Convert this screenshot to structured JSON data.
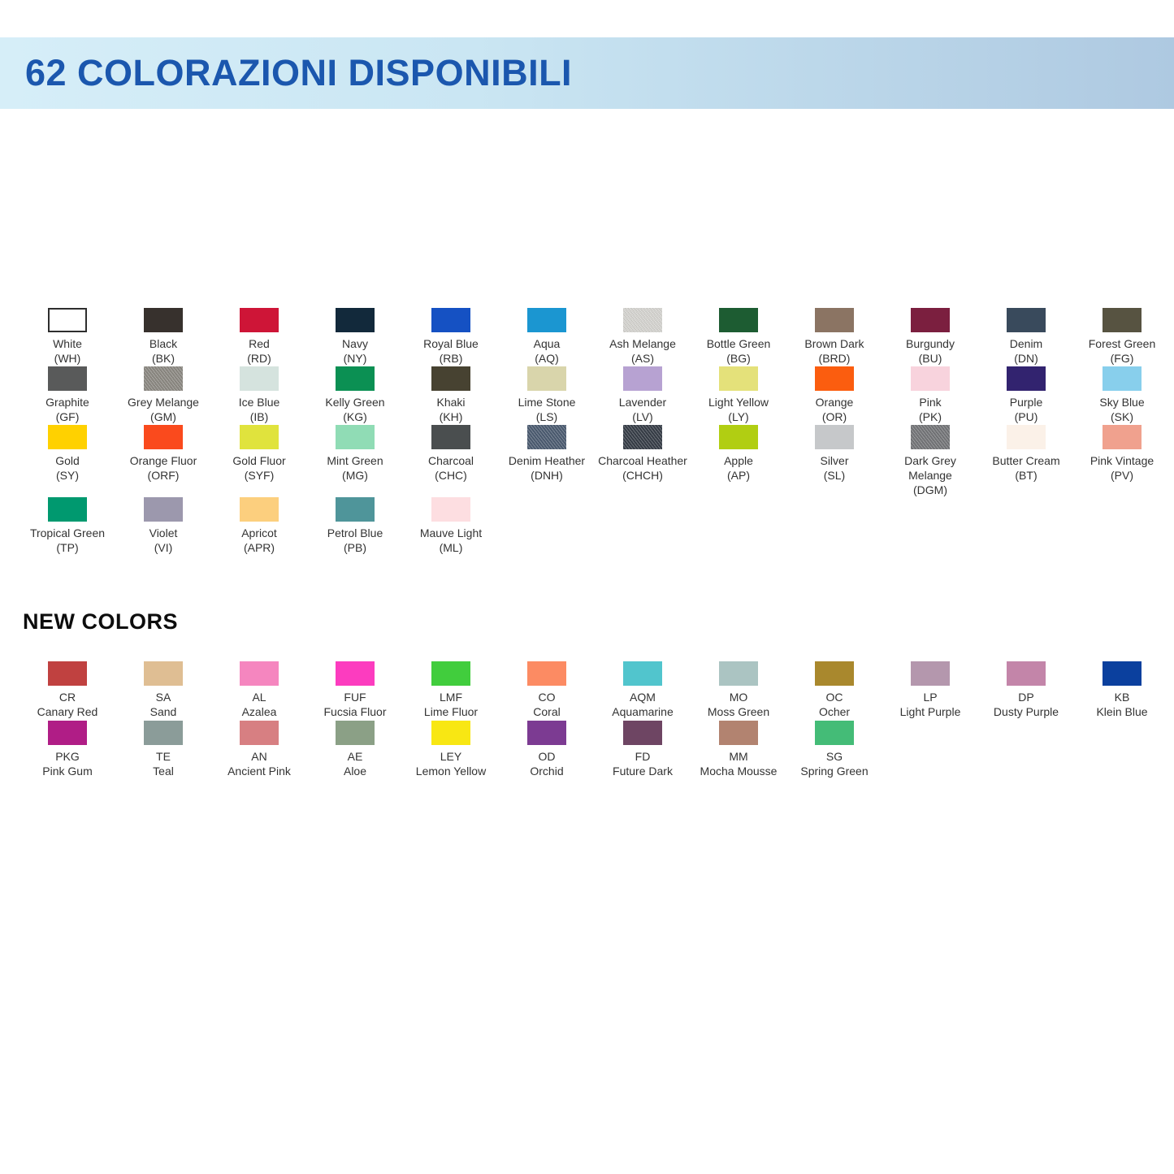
{
  "header": {
    "title": "62 COLORAZIONI DISPONIBILI",
    "title_color": "#1b57ae",
    "band_gradient_left": "#d6eef8",
    "band_gradient_right": "#aec9e1"
  },
  "new_colors_heading": "NEW COLORS",
  "label_color": "#333333",
  "palette": {
    "main_rows": [
      [
        {
          "name": "White",
          "code": "(WH)",
          "hex": "#ffffff",
          "border": true
        },
        {
          "name": "Black",
          "code": "(BK)",
          "hex": "#37312d"
        },
        {
          "name": "Red",
          "code": "(RD)",
          "hex": "#ce1537"
        },
        {
          "name": "Navy",
          "code": "(NY)",
          "hex": "#12293b"
        },
        {
          "name": "Royal Blue",
          "code": "(RB)",
          "hex": "#1551c3"
        },
        {
          "name": "Aqua",
          "code": "(AQ)",
          "hex": "#1b96d1"
        },
        {
          "name": "Ash Melange",
          "code": "(AS)",
          "hex": "#d9d8d4",
          "melange": true
        },
        {
          "name": "Bottle Green",
          "code": "(BG)",
          "hex": "#1d5c32"
        },
        {
          "name": "Brown Dark",
          "code": "(BRD)",
          "hex": "#8b7463"
        },
        {
          "name": "Burgundy",
          "code": "(BU)",
          "hex": "#7b1f3f"
        },
        {
          "name": "Denim",
          "code": "(DN)",
          "hex": "#394a5c"
        },
        {
          "name": "Forest Green",
          "code": "(FG)",
          "hex": "#575341"
        }
      ],
      [
        {
          "name": "Graphite",
          "code": "(GF)",
          "hex": "#595a5a"
        },
        {
          "name": "Grey Melange",
          "code": "(GM)",
          "hex": "#8e8b84",
          "melange": true
        },
        {
          "name": "Ice Blue",
          "code": "(IB)",
          "hex": "#d5e3de"
        },
        {
          "name": "Kelly Green",
          "code": "(KG)",
          "hex": "#0b9053"
        },
        {
          "name": "Khaki",
          "code": "(KH)",
          "hex": "#474231"
        },
        {
          "name": "Lime Stone",
          "code": "(LS)",
          "hex": "#d9d5ab"
        },
        {
          "name": "Lavender",
          "code": "(LV)",
          "hex": "#b7a2d2"
        },
        {
          "name": "Light Yellow",
          "code": "(LY)",
          "hex": "#e4e17a"
        },
        {
          "name": "Orange",
          "code": "(OR)",
          "hex": "#fb5d0f"
        },
        {
          "name": "Pink",
          "code": "(PK)",
          "hex": "#f8d3dd"
        },
        {
          "name": "Purple",
          "code": "(PU)",
          "hex": "#32236f"
        },
        {
          "name": "Sky Blue",
          "code": "(SK)",
          "hex": "#88cfec"
        }
      ],
      [
        {
          "name": "Gold",
          "code": "(SY)",
          "hex": "#ffd100"
        },
        {
          "name": "Orange Fluor",
          "code": "(ORF)",
          "hex": "#fa4a1d"
        },
        {
          "name": "Gold Fluor",
          "code": "(SYF)",
          "hex": "#e0e33d"
        },
        {
          "name": "Mint Green",
          "code": "(MG)",
          "hex": "#90dcb5"
        },
        {
          "name": "Charcoal",
          "code": "(CHC)",
          "hex": "#4a4e4f"
        },
        {
          "name": "Denim Heather",
          "code": "(DNH)",
          "hex": "#4d5d73",
          "melange": true
        },
        {
          "name": "Charcoal Heather",
          "code": "(CHCH)",
          "hex": "#373e48",
          "melange": true
        },
        {
          "name": "Apple",
          "code": "(AP)",
          "hex": "#b1ce12"
        },
        {
          "name": "Silver",
          "code": "(SL)",
          "hex": "#c6c8ca"
        },
        {
          "name": "Dark Grey Melange",
          "code": "(DGM)",
          "hex": "#76777a",
          "melange": true,
          "wrap": true
        },
        {
          "name": "Butter Cream",
          "code": "(BT)",
          "hex": "#fbf1e8"
        },
        {
          "name": "Pink Vintage",
          "code": "(PV)",
          "hex": "#f0a18e"
        }
      ],
      [
        {
          "name": "Tropical Green",
          "code": "(TP)",
          "hex": "#00996f"
        },
        {
          "name": "Violet",
          "code": "(VI)",
          "hex": "#9c98ad"
        },
        {
          "name": "Apricot",
          "code": "(APR)",
          "hex": "#fccf7e"
        },
        {
          "name": "Petrol Blue",
          "code": "(PB)",
          "hex": "#4f959a"
        },
        {
          "name": "Mauve Light",
          "code": "(ML)",
          "hex": "#fddee1"
        }
      ]
    ],
    "new_rows": [
      [
        {
          "code": "CR",
          "name": "Canary Red",
          "hex": "#c04140"
        },
        {
          "code": "SA",
          "name": "Sand",
          "hex": "#dfbe93"
        },
        {
          "code": "AL",
          "name": "Azalea",
          "hex": "#f586bf"
        },
        {
          "code": "FUF",
          "name": "Fucsia Fluor",
          "hex": "#fc3cbf"
        },
        {
          "code": "LMF",
          "name": "Lime Fluor",
          "hex": "#41cd3d"
        },
        {
          "code": "CO",
          "name": "Coral",
          "hex": "#fc8b63"
        },
        {
          "code": "AQM",
          "name": "Aquamarine",
          "hex": "#51c5cd"
        },
        {
          "code": "MO",
          "name": "Moss Green",
          "hex": "#abc4c2"
        },
        {
          "code": "OC",
          "name": "Ocher",
          "hex": "#a9882d"
        },
        {
          "code": "LP",
          "name": "Light Purple",
          "hex": "#b497ad"
        },
        {
          "code": "DP",
          "name": "Dusty Purple",
          "hex": "#c385a9"
        },
        {
          "code": "KB",
          "name": "Klein Blue",
          "hex": "#0b409e"
        }
      ],
      [
        {
          "code": "PKG",
          "name": "Pink Gum",
          "hex": "#b01d86"
        },
        {
          "code": "TE",
          "name": "Teal",
          "hex": "#8b9c99"
        },
        {
          "code": "AN",
          "name": "Ancient Pink",
          "hex": "#d77f82"
        },
        {
          "code": "AE",
          "name": "Aloe",
          "hex": "#8ba086"
        },
        {
          "code": "LEY",
          "name": "Lemon Yellow",
          "hex": "#f8e713"
        },
        {
          "code": "OD",
          "name": "Orchid",
          "hex": "#7c3b92"
        },
        {
          "code": "FD",
          "name": "Future Dark",
          "hex": "#6e4563"
        },
        {
          "code": "MM",
          "name": "Mocha Mousse",
          "hex": "#b28370"
        },
        {
          "code": "SG",
          "name": "Spring Green",
          "hex": "#44bc77"
        }
      ]
    ]
  }
}
